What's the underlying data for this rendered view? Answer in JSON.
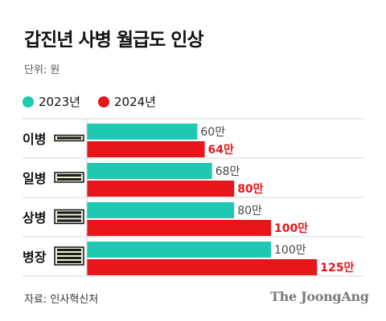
{
  "title": "갑진년 사병 월급도 인상",
  "unit": "단위: 원",
  "legend": {
    "items": [
      {
        "label": "2023년",
        "color": "#1fc8b0"
      },
      {
        "label": "2024년",
        "color": "#e8151b"
      }
    ]
  },
  "source": "자료: 인사혁신처",
  "logo": "The JoongAng",
  "chart_data": {
    "type": "bar",
    "orientation": "horizontal",
    "categories": [
      "이병",
      "일병",
      "상병",
      "병장"
    ],
    "series": [
      {
        "name": "2023년",
        "values": [
          60,
          68,
          80,
          100
        ],
        "labels": [
          "60만",
          "68만",
          "80만",
          "100만"
        ],
        "color": "#1fc8b0"
      },
      {
        "name": "2024년",
        "values": [
          64,
          80,
          100,
          125
        ],
        "labels": [
          "64만",
          "80만",
          "100만",
          "125만"
        ],
        "color": "#e8151b"
      }
    ],
    "rank_icons": [
      "rank-1-stripe-icon",
      "rank-2-stripes-icon",
      "rank-3-stripes-icon",
      "rank-4-stripes-icon"
    ],
    "grid": false,
    "legend_position": "top-left"
  }
}
